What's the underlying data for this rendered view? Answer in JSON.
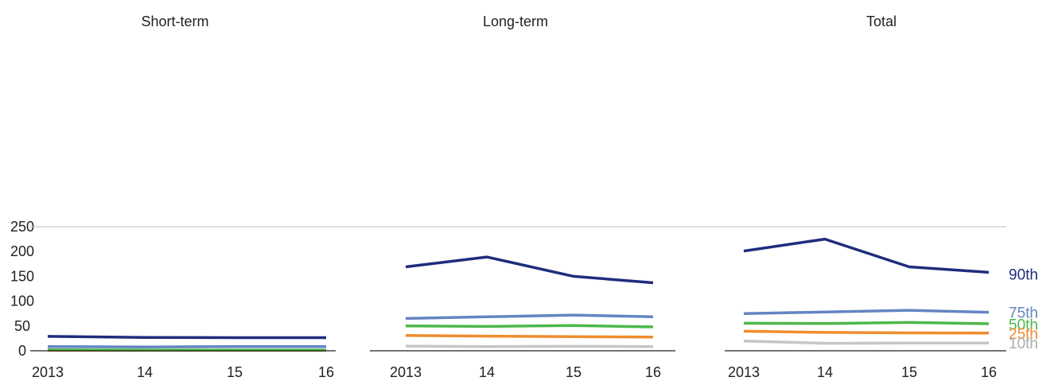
{
  "chart_data": {
    "type": "line",
    "ylim": [
      0,
      250
    ],
    "yticks": [
      0,
      50,
      100,
      150,
      200,
      250
    ],
    "categories": [
      "2013",
      "14",
      "15",
      "16"
    ],
    "grid": "horizontal line at 100 only",
    "panels": [
      {
        "title": "Short-term",
        "series": [
          {
            "name": "90th",
            "color": "#1f2d7c",
            "values": [
              29,
              27,
              26.5,
              26.5
            ]
          },
          {
            "name": "75th",
            "color": "#6485c2",
            "values": [
              8.5,
              7.5,
              8.5,
              8.5
            ]
          },
          {
            "name": "50th",
            "color": "#4cb848",
            "values": [
              2,
              1.5,
              1.5,
              1.5
            ]
          },
          {
            "name": "25th",
            "color": "#f08c2e",
            "values": [
              1,
              1,
              1,
              1
            ]
          },
          {
            "name": "10th",
            "color": "#c4c6c9",
            "values": [
              0.5,
              0.5,
              0.5,
              0.5
            ]
          }
        ]
      },
      {
        "title": "Long-term",
        "series": [
          {
            "name": "90th",
            "color": "#1f2d7c",
            "values": [
              169,
              189,
              150,
              137
            ]
          },
          {
            "name": "75th",
            "color": "#6485c2",
            "values": [
              65,
              68.5,
              72,
              68.5
            ]
          },
          {
            "name": "50th",
            "color": "#4cb848",
            "values": [
              50,
              49,
              51,
              48
            ]
          },
          {
            "name": "25th",
            "color": "#f08c2e",
            "values": [
              31,
              29.5,
              28.5,
              27.5
            ]
          },
          {
            "name": "10th",
            "color": "#c4c6c9",
            "values": [
              9.5,
              8.5,
              9,
              8.5
            ]
          }
        ]
      },
      {
        "title": "Total",
        "series": [
          {
            "name": "90th",
            "color": "#1f2d7c",
            "values": [
              201,
              225,
              169,
              158
            ]
          },
          {
            "name": "75th",
            "color": "#6485c2",
            "values": [
              75,
              78,
              81.5,
              77.5
            ]
          },
          {
            "name": "50th",
            "color": "#4cb848",
            "values": [
              55.5,
              55,
              57,
              54.5
            ]
          },
          {
            "name": "25th",
            "color": "#f08c2e",
            "values": [
              39.5,
              37,
              36,
              35.5
            ]
          },
          {
            "name": "10th",
            "color": "#c4c6c9",
            "values": [
              19.5,
              15,
              15.5,
              15.5
            ]
          }
        ]
      }
    ],
    "end_labels": [
      {
        "text": "90th",
        "color": "#1f2d7c",
        "value": 155
      },
      {
        "text": "75th",
        "color": "#6485c2",
        "value": 78
      },
      {
        "text": "50th",
        "color": "#4cb848",
        "value": 54
      },
      {
        "text": "25th",
        "color": "#f08c2e",
        "value": 35
      },
      {
        "text": "10th",
        "color": "#a9abae",
        "value": 16
      }
    ]
  }
}
